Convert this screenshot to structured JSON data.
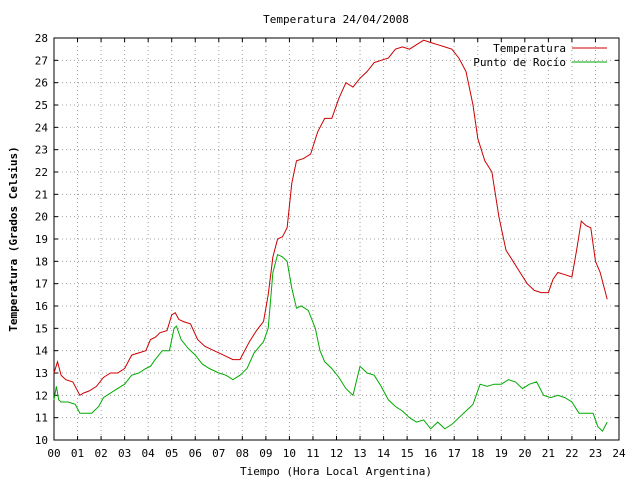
{
  "chart_data": {
    "type": "line",
    "title": "Temperatura 24/04/2008",
    "xlabel": "Tiempo (Hora Local Argentina)",
    "ylabel": "Temperatura (Grados Celsius)",
    "xlim": [
      0,
      24
    ],
    "ylim": [
      10,
      28
    ],
    "x_ticks": [
      "00",
      "01",
      "02",
      "03",
      "04",
      "05",
      "06",
      "07",
      "08",
      "09",
      "10",
      "11",
      "12",
      "13",
      "14",
      "15",
      "16",
      "17",
      "18",
      "19",
      "20",
      "21",
      "22",
      "23",
      "24"
    ],
    "y_ticks": [
      10,
      11,
      12,
      13,
      14,
      15,
      16,
      17,
      18,
      19,
      20,
      21,
      22,
      23,
      24,
      25,
      26,
      27,
      28
    ],
    "grid": true,
    "legend_position": "top-right",
    "series": [
      {
        "name": "Temperatura",
        "color": "#cc0000",
        "x": [
          0.0,
          0.15,
          0.3,
          0.5,
          0.8,
          1.1,
          1.25,
          1.5,
          1.8,
          2.1,
          2.4,
          2.7,
          3.0,
          3.3,
          3.6,
          3.9,
          4.1,
          4.3,
          4.5,
          4.8,
          5.0,
          5.15,
          5.3,
          5.5,
          5.8,
          6.1,
          6.4,
          6.8,
          7.2,
          7.6,
          7.9,
          8.0,
          8.3,
          8.6,
          8.9,
          9.1,
          9.3,
          9.5,
          9.7,
          9.9,
          10.1,
          10.3,
          10.6,
          10.9,
          11.2,
          11.5,
          11.8,
          12.1,
          12.4,
          12.7,
          13.0,
          13.3,
          13.6,
          13.9,
          14.2,
          14.5,
          14.8,
          15.1,
          15.4,
          15.7,
          16.0,
          16.3,
          16.6,
          16.9,
          17.2,
          17.5,
          17.8,
          18.0,
          18.3,
          18.6,
          18.9,
          19.2,
          19.5,
          19.8,
          20.1,
          20.4,
          20.7,
          21.0,
          21.2,
          21.4,
          21.7,
          22.0,
          22.2,
          22.4,
          22.6,
          22.8,
          23.0,
          23.2,
          23.5
        ],
        "values": [
          13.0,
          13.5,
          12.9,
          12.7,
          12.6,
          12.0,
          12.1,
          12.2,
          12.4,
          12.8,
          13.0,
          13.0,
          13.2,
          13.8,
          13.9,
          14.0,
          14.5,
          14.6,
          14.8,
          14.9,
          15.6,
          15.7,
          15.4,
          15.3,
          15.2,
          14.5,
          14.2,
          14.0,
          13.8,
          13.6,
          13.6,
          13.8,
          14.4,
          14.9,
          15.3,
          16.5,
          18.2,
          19.0,
          19.1,
          19.5,
          21.5,
          22.5,
          22.6,
          22.8,
          23.8,
          24.4,
          24.4,
          25.3,
          26.0,
          25.8,
          26.2,
          26.5,
          26.9,
          27.0,
          27.1,
          27.5,
          27.6,
          27.5,
          27.7,
          27.9,
          27.8,
          27.7,
          27.6,
          27.5,
          27.1,
          26.5,
          25.0,
          23.5,
          22.5,
          22.0,
          20.0,
          18.5,
          18.0,
          17.5,
          17.0,
          16.7,
          16.6,
          16.6,
          17.2,
          17.5,
          17.4,
          17.3,
          18.5,
          19.8,
          19.6,
          19.5,
          18.0,
          17.5,
          16.3
        ]
      },
      {
        "name": "Punto de Rocío",
        "color": "#00aa00",
        "x": [
          0.0,
          0.1,
          0.2,
          0.3,
          0.6,
          0.9,
          1.1,
          1.3,
          1.6,
          1.9,
          2.1,
          2.4,
          2.7,
          3.0,
          3.3,
          3.6,
          3.9,
          4.1,
          4.3,
          4.6,
          4.9,
          5.1,
          5.2,
          5.4,
          5.7,
          6.0,
          6.3,
          6.6,
          7.0,
          7.3,
          7.6,
          7.9,
          8.2,
          8.5,
          8.9,
          9.1,
          9.3,
          9.5,
          9.7,
          9.9,
          10.1,
          10.3,
          10.5,
          10.8,
          11.1,
          11.3,
          11.5,
          11.8,
          12.1,
          12.4,
          12.7,
          13.0,
          13.3,
          13.6,
          13.9,
          14.2,
          14.5,
          14.8,
          15.1,
          15.4,
          15.7,
          16.0,
          16.3,
          16.6,
          16.9,
          17.2,
          17.5,
          17.8,
          18.1,
          18.4,
          18.7,
          19.0,
          19.3,
          19.6,
          19.9,
          20.2,
          20.5,
          20.8,
          21.1,
          21.4,
          21.7,
          22.0,
          22.3,
          22.6,
          22.9,
          23.1,
          23.3,
          23.5
        ],
        "values": [
          11.8,
          12.4,
          11.8,
          11.7,
          11.7,
          11.6,
          11.2,
          11.2,
          11.2,
          11.5,
          11.9,
          12.1,
          12.3,
          12.5,
          12.9,
          13.0,
          13.2,
          13.3,
          13.6,
          14.0,
          14.0,
          15.0,
          15.1,
          14.5,
          14.1,
          13.8,
          13.4,
          13.2,
          13.0,
          12.9,
          12.7,
          12.9,
          13.2,
          13.9,
          14.4,
          15.0,
          17.5,
          18.3,
          18.2,
          18.0,
          16.8,
          15.9,
          16.0,
          15.8,
          15.0,
          14.0,
          13.5,
          13.2,
          12.8,
          12.3,
          12.0,
          13.3,
          13.0,
          12.9,
          12.4,
          11.8,
          11.5,
          11.3,
          11.0,
          10.8,
          10.9,
          10.5,
          10.8,
          10.5,
          10.7,
          11.0,
          11.3,
          11.6,
          12.5,
          12.4,
          12.5,
          12.5,
          12.7,
          12.6,
          12.3,
          12.5,
          12.6,
          12.0,
          11.9,
          12.0,
          11.9,
          11.7,
          11.2,
          11.2,
          11.2,
          10.6,
          10.4,
          10.8
        ]
      }
    ]
  }
}
